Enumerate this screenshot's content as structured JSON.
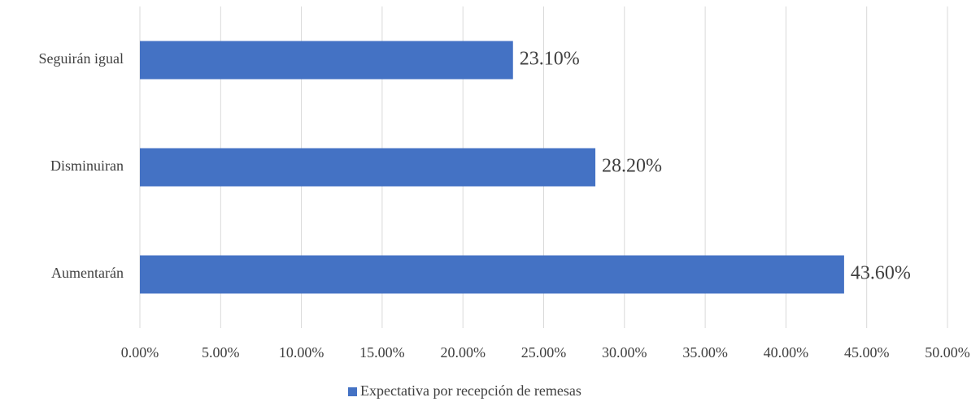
{
  "chart_data": {
    "type": "hbar",
    "categories": [
      "Seguirán igual",
      "Disminuiran",
      "Aumentarán"
    ],
    "series": [
      {
        "name": "Expectativa por recepción de remesas",
        "color": "#4472c4",
        "values": [
          23.1,
          28.2,
          43.6
        ],
        "value_labels": [
          "23.10%",
          "28.20%",
          "43.60%"
        ]
      }
    ],
    "xlim": [
      0,
      50
    ],
    "xticks": [
      {
        "value": 0,
        "label": "0.00%"
      },
      {
        "value": 5,
        "label": "5.00%"
      },
      {
        "value": 10,
        "label": "10.00%"
      },
      {
        "value": 15,
        "label": "15.00%"
      },
      {
        "value": 20,
        "label": "20.00%"
      },
      {
        "value": 25,
        "label": "25.00%"
      },
      {
        "value": 30,
        "label": "30.00%"
      },
      {
        "value": 35,
        "label": "35.00%"
      },
      {
        "value": 40,
        "label": "40.00%"
      },
      {
        "value": 45,
        "label": "45.00%"
      },
      {
        "value": 50,
        "label": "50.00%"
      }
    ],
    "grid": true,
    "legend": "bottom"
  }
}
